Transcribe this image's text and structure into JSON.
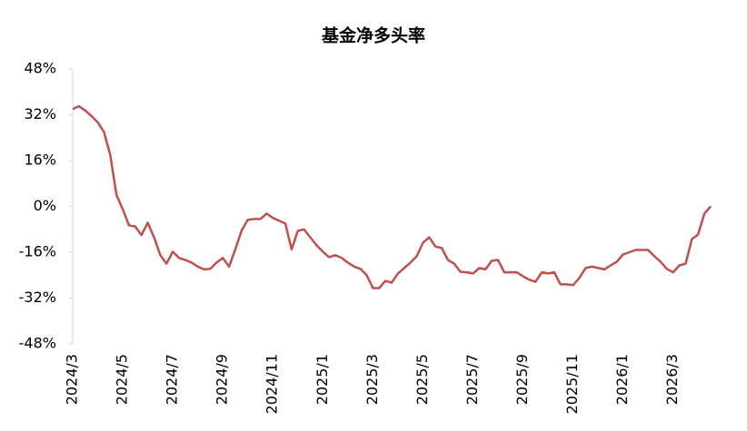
{
  "chart_data": {
    "type": "line",
    "title": "基金净多头率",
    "categories": [
      "2024/3",
      null,
      null,
      null,
      null,
      null,
      null,
      null,
      "2024/5",
      null,
      null,
      null,
      null,
      null,
      null,
      null,
      "2024/7",
      null,
      null,
      null,
      null,
      null,
      null,
      null,
      "2024/9",
      null,
      null,
      null,
      null,
      null,
      null,
      null,
      "2024/11",
      null,
      null,
      null,
      null,
      null,
      null,
      null,
      "2025/1",
      null,
      null,
      null,
      null,
      null,
      null,
      null,
      "2025/3",
      null,
      null,
      null,
      null,
      null,
      null,
      null,
      "2025/5",
      null,
      null,
      null,
      null,
      null,
      null,
      null,
      "2025/7",
      null,
      null,
      null,
      null,
      null,
      null,
      null,
      "2025/9",
      null,
      null,
      null,
      null,
      null,
      null,
      null,
      "2025/11",
      null,
      null,
      null,
      null,
      null,
      null,
      null,
      "2026/1",
      null,
      null,
      null,
      null,
      null,
      null,
      null,
      "2026/3",
      null,
      null,
      null,
      null,
      null,
      null
    ],
    "series": [
      {
        "color": "#c0504d",
        "values": [
          34,
          35,
          33.5,
          31.6,
          29.4,
          26,
          18,
          4,
          -1,
          -6.6,
          -7,
          -10,
          -5.7,
          -10.8,
          -17,
          -20,
          -15.8,
          -18,
          -18.7,
          -19.6,
          -21,
          -22,
          -21.8,
          -19.6,
          -18,
          -21,
          -15,
          -8.5,
          -4.7,
          -4.4,
          -4.4,
          -2.5,
          -4,
          -5,
          -6,
          -15,
          -8.5,
          -8,
          -10.8,
          -13.6,
          -15.8,
          -17.7,
          -17,
          -18,
          -19.6,
          -21,
          -21.8,
          -24,
          -28.5,
          -28.5,
          -26,
          -26.6,
          -23.4,
          -21.5,
          -19.6,
          -17.4,
          -12.7,
          -10.8,
          -14,
          -14.5,
          -18.7,
          -20,
          -22.8,
          -23,
          -23.4,
          -21.5,
          -22,
          -19,
          -18.7,
          -23,
          -23,
          -23,
          -24.4,
          -25.6,
          -26.3,
          -23,
          -23.4,
          -23,
          -27.2,
          -27.2,
          -27.5,
          -25,
          -21.5,
          -21,
          -21.5,
          -22,
          -20.6,
          -19.3,
          -16.8,
          -16,
          -15.2,
          -15.2,
          -15.2,
          -17.4,
          -19.3,
          -21.8,
          -23,
          -20.6,
          -20,
          -11.4,
          -9.8,
          -2.5,
          0
        ]
      }
    ],
    "ylim": [
      -48,
      48
    ],
    "yticks": [
      {
        "value": -48,
        "label": "-48%"
      },
      {
        "value": -32,
        "label": "-32%"
      },
      {
        "value": -16,
        "label": "-16%"
      },
      {
        "value": 0,
        "label": "0%"
      },
      {
        "value": 16,
        "label": "16%"
      },
      {
        "value": 32,
        "label": "32%"
      },
      {
        "value": 48,
        "label": "48%"
      }
    ]
  }
}
